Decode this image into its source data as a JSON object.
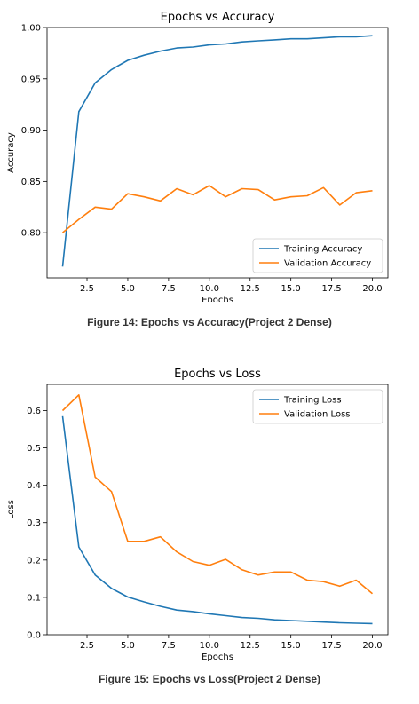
{
  "chart_data": [
    {
      "type": "line",
      "title": "Epochs vs Accuracy",
      "xlabel": "Epochs",
      "ylabel": "Accuracy",
      "xlim": [
        0.05,
        20.95
      ],
      "ylim": [
        0.756,
        1.0
      ],
      "xticks": [
        "2.5",
        "5.0",
        "7.5",
        "10.0",
        "12.5",
        "15.0",
        "17.5",
        "20.0"
      ],
      "yticks": [
        "0.80",
        "0.85",
        "0.90",
        "0.95",
        "1.00"
      ],
      "legend": "lower-right",
      "grid": false,
      "x": [
        1,
        2,
        3,
        4,
        5,
        6,
        7,
        8,
        9,
        10,
        11,
        12,
        13,
        14,
        15,
        16,
        17,
        18,
        19,
        20
      ],
      "series": [
        {
          "name": "Training Accuracy",
          "color": "#1f77b4",
          "values": [
            0.767,
            0.918,
            0.946,
            0.959,
            0.968,
            0.973,
            0.977,
            0.98,
            0.981,
            0.983,
            0.984,
            0.986,
            0.987,
            0.988,
            0.989,
            0.989,
            0.99,
            0.991,
            0.991,
            0.992
          ]
        },
        {
          "name": "Validation Accuracy",
          "color": "#ff7f0e",
          "values": [
            0.8,
            0.813,
            0.825,
            0.823,
            0.838,
            0.835,
            0.831,
            0.843,
            0.837,
            0.846,
            0.835,
            0.843,
            0.842,
            0.832,
            0.835,
            0.836,
            0.844,
            0.827,
            0.839,
            0.841
          ]
        }
      ]
    },
    {
      "type": "line",
      "title": "Epochs vs Loss",
      "xlabel": "Epochs",
      "ylabel": "Loss",
      "xlim": [
        0.05,
        20.95
      ],
      "ylim": [
        0.0,
        0.67
      ],
      "xticks": [
        "2.5",
        "5.0",
        "7.5",
        "10.0",
        "12.5",
        "15.0",
        "17.5",
        "20.0"
      ],
      "yticks": [
        "0.0",
        "0.1",
        "0.2",
        "0.3",
        "0.4",
        "0.5",
        "0.6"
      ],
      "legend": "top-right",
      "grid": false,
      "x": [
        1,
        2,
        3,
        4,
        5,
        6,
        7,
        8,
        9,
        10,
        11,
        12,
        13,
        14,
        15,
        16,
        17,
        18,
        19,
        20
      ],
      "series": [
        {
          "name": "Training Loss",
          "color": "#1f77b4",
          "values": [
            0.585,
            0.235,
            0.16,
            0.124,
            0.101,
            0.088,
            0.076,
            0.066,
            0.062,
            0.056,
            0.051,
            0.046,
            0.044,
            0.04,
            0.038,
            0.036,
            0.034,
            0.032,
            0.031,
            0.03
          ]
        },
        {
          "name": "Validation Loss",
          "color": "#ff7f0e",
          "values": [
            0.6,
            0.642,
            0.422,
            0.383,
            0.25,
            0.25,
            0.262,
            0.222,
            0.196,
            0.186,
            0.202,
            0.174,
            0.16,
            0.168,
            0.168,
            0.146,
            0.142,
            0.13,
            0.146,
            0.11
          ]
        }
      ]
    }
  ],
  "captions": {
    "fig14": "Figure 14: Epochs vs Accuracy(Project 2 Dense)",
    "fig15": "Figure 15: Epochs vs Loss(Project 2 Dense)"
  }
}
